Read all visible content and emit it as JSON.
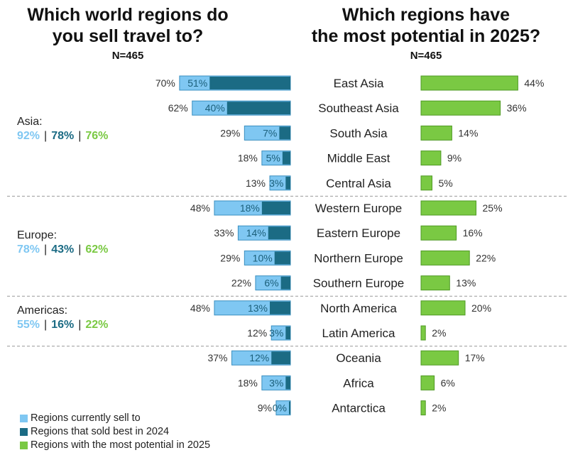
{
  "titles": {
    "left": [
      "Which world regions do",
      "you sell travel to?"
    ],
    "right": [
      "Which regions have",
      "the most potential in 2025?"
    ],
    "n_left": "N=465",
    "n_right": "N=465"
  },
  "colors": {
    "sell": "#7fc7f2",
    "sold_best": "#1b6b84",
    "potential": "#7ac943",
    "separator": "#999999"
  },
  "groups": [
    {
      "name": "Asia:",
      "sell": "92%",
      "best": "78%",
      "potential": "76%"
    },
    {
      "name": "Europe:",
      "sell": "78%",
      "best": "43%",
      "potential": "62%"
    },
    {
      "name": "Americas:",
      "sell": "55%",
      "best": "16%",
      "potential": "22%"
    }
  ],
  "chart_data": {
    "type": "bar",
    "categories": [
      "East Asia",
      "Southeast Asia",
      "South Asia",
      "Middle East",
      "Central Asia",
      "Western Europe",
      "Eastern Europe",
      "Northern Europe",
      "Southern Europe",
      "North America",
      "Latin America",
      "Oceania",
      "Africa",
      "Antarctica"
    ],
    "series": [
      {
        "name": "Regions currently sell to",
        "values": [
          70,
          62,
          29,
          18,
          13,
          48,
          33,
          29,
          22,
          48,
          12,
          37,
          18,
          9
        ]
      },
      {
        "name": "Regions that sold best in 2024",
        "values": [
          51,
          40,
          7,
          5,
          3,
          18,
          14,
          10,
          6,
          13,
          3,
          12,
          3,
          0
        ]
      },
      {
        "name": "Regions with the most potential in 2025",
        "values": [
          44,
          36,
          14,
          9,
          5,
          25,
          16,
          22,
          13,
          20,
          2,
          17,
          6,
          2
        ]
      }
    ],
    "value_suffix": "%",
    "group_breaks_after": [
      4,
      8,
      10
    ]
  },
  "legend": [
    {
      "label": "Regions currently sell to",
      "color": "#7fc7f2"
    },
    {
      "label": "Regions that sold best in 2024",
      "color": "#1b6b84"
    },
    {
      "label": "Regions with the most potential in 2025",
      "color": "#7ac943"
    }
  ]
}
